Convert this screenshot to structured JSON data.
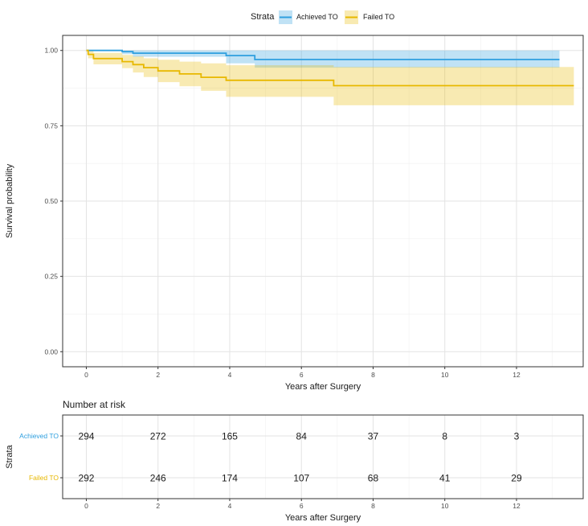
{
  "chart_data": {
    "type": "line",
    "subtype": "kaplan-meier-step",
    "legend": {
      "title": "Strata",
      "position": "top"
    },
    "xlabel": "Years after Surgery",
    "ylabel": "Survival probability",
    "xlim": [
      -0.66,
      13.86
    ],
    "ylim": [
      -0.05,
      1.05
    ],
    "xticks": [
      0,
      2,
      4,
      6,
      8,
      10,
      12
    ],
    "xtick_labels": [
      "0",
      "2",
      "4",
      "6",
      "8",
      "10",
      "12"
    ],
    "yticks": [
      0,
      0.25,
      0.5,
      0.75,
      1.0
    ],
    "ytick_labels": [
      "0.00",
      "0.25",
      "0.50",
      "0.75",
      "1.00"
    ],
    "grid": true,
    "series": [
      {
        "name": "Achieved TO",
        "color": "#2E9FDF",
        "fill": "#2E9FDF",
        "x": [
          0,
          1.0,
          1.3,
          3.9,
          4.7,
          13.2
        ],
        "y": [
          1.0,
          0.996,
          0.991,
          0.983,
          0.97,
          0.97
        ],
        "lower": [
          1.0,
          0.988,
          0.979,
          0.957,
          0.943,
          0.943
        ],
        "upper": [
          1.0,
          1.0,
          1.0,
          1.0,
          1.0,
          1.0
        ]
      },
      {
        "name": "Failed TO",
        "color": "#E7B800",
        "fill": "#E7B800",
        "x": [
          0,
          0.05,
          0.2,
          1.0,
          1.3,
          1.6,
          2.0,
          2.6,
          3.2,
          3.9,
          6.9,
          13.6
        ],
        "y": [
          1.0,
          0.987,
          0.973,
          0.963,
          0.953,
          0.943,
          0.932,
          0.922,
          0.911,
          0.901,
          0.883,
          0.883
        ],
        "lower": [
          1.0,
          0.974,
          0.954,
          0.941,
          0.927,
          0.912,
          0.895,
          0.881,
          0.866,
          0.846,
          0.818,
          0.818
        ],
        "upper": [
          1.0,
          1.0,
          0.992,
          0.985,
          0.98,
          0.974,
          0.969,
          0.963,
          0.957,
          0.951,
          0.945,
          0.945
        ]
      }
    ],
    "risk_table": {
      "title": "Number at risk",
      "ylabel": "Strata",
      "xlabel": "Years after Surgery",
      "times": [
        0,
        2,
        4,
        6,
        8,
        10,
        12
      ],
      "rows": [
        {
          "name": "Achieved TO",
          "color": "#2E9FDF",
          "counts": [
            "294",
            "272",
            "165",
            "84",
            "37",
            "8",
            "3"
          ]
        },
        {
          "name": "Failed TO",
          "color": "#E7B800",
          "counts": [
            "292",
            "246",
            "174",
            "107",
            "68",
            "41",
            "29"
          ]
        }
      ]
    }
  }
}
